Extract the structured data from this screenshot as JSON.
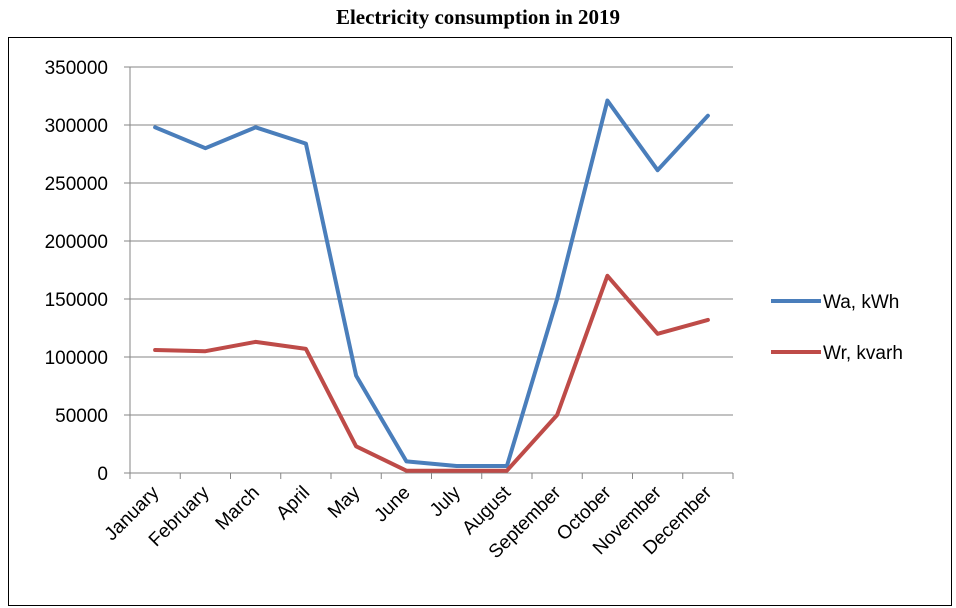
{
  "chart_data": {
    "type": "line",
    "title": "Electricity consumption in 2019",
    "categories": [
      "January",
      "February",
      "March",
      "April",
      "May",
      "June",
      "July",
      "August",
      "September",
      "October",
      "November",
      "December"
    ],
    "series": [
      {
        "name": "Wa, kWh",
        "color": "#4a7ebb",
        "values": [
          298000,
          280000,
          298000,
          284000,
          84000,
          10000,
          6000,
          6000,
          150000,
          321000,
          261000,
          308000
        ]
      },
      {
        "name": "Wr, kvarh",
        "color": "#be4b48",
        "values": [
          106000,
          105000,
          113000,
          107000,
          23000,
          2000,
          2000,
          2000,
          50000,
          170000,
          120000,
          132000
        ]
      }
    ],
    "y_ticks": [
      "0",
      "50000",
      "100000",
      "150000",
      "200000",
      "250000",
      "300000",
      "350000"
    ],
    "ylim": [
      0,
      350000
    ],
    "grid": true,
    "legend": "right"
  }
}
